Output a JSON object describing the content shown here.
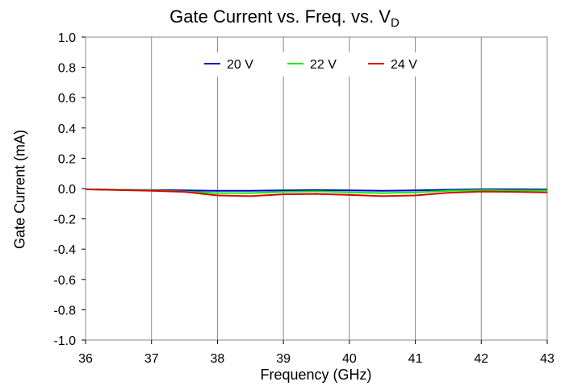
{
  "chart_data": {
    "type": "line",
    "title": "Gate Current vs. Freq. vs. V",
    "title_subscript": "D",
    "xlabel": "Frequency (GHz)",
    "ylabel": "Gate Current (mA)",
    "xlim": [
      36,
      43
    ],
    "ylim": [
      -1.0,
      1.0
    ],
    "x_ticks": [
      "36",
      "37",
      "38",
      "39",
      "40",
      "41",
      "42",
      "43"
    ],
    "y_ticks": [
      "1.0",
      "0.8",
      "0.6",
      "0.4",
      "0.2",
      "0.0",
      "-0.2",
      "-0.4",
      "-0.6",
      "-0.8",
      "-1.0"
    ],
    "grid": "vertical",
    "legend_position": "top",
    "x": [
      36,
      36.5,
      37,
      37.5,
      38,
      38.5,
      39,
      39.5,
      40,
      40.5,
      41,
      41.5,
      42,
      42.5,
      43
    ],
    "series": [
      {
        "name": "20 V",
        "color": "#0000cc",
        "values": [
          -0.005,
          -0.008,
          -0.01,
          -0.012,
          -0.015,
          -0.015,
          -0.012,
          -0.01,
          -0.012,
          -0.015,
          -0.012,
          -0.008,
          -0.005,
          -0.005,
          -0.006
        ]
      },
      {
        "name": "22 V",
        "color": "#00ee00",
        "values": [
          -0.005,
          -0.008,
          -0.012,
          -0.02,
          -0.03,
          -0.03,
          -0.022,
          -0.018,
          -0.025,
          -0.03,
          -0.025,
          -0.015,
          -0.01,
          -0.012,
          -0.013
        ]
      },
      {
        "name": "24 V",
        "color": "#dd0000",
        "values": [
          -0.005,
          -0.01,
          -0.015,
          -0.022,
          -0.045,
          -0.05,
          -0.038,
          -0.035,
          -0.042,
          -0.05,
          -0.045,
          -0.028,
          -0.02,
          -0.022,
          -0.025
        ]
      }
    ]
  }
}
